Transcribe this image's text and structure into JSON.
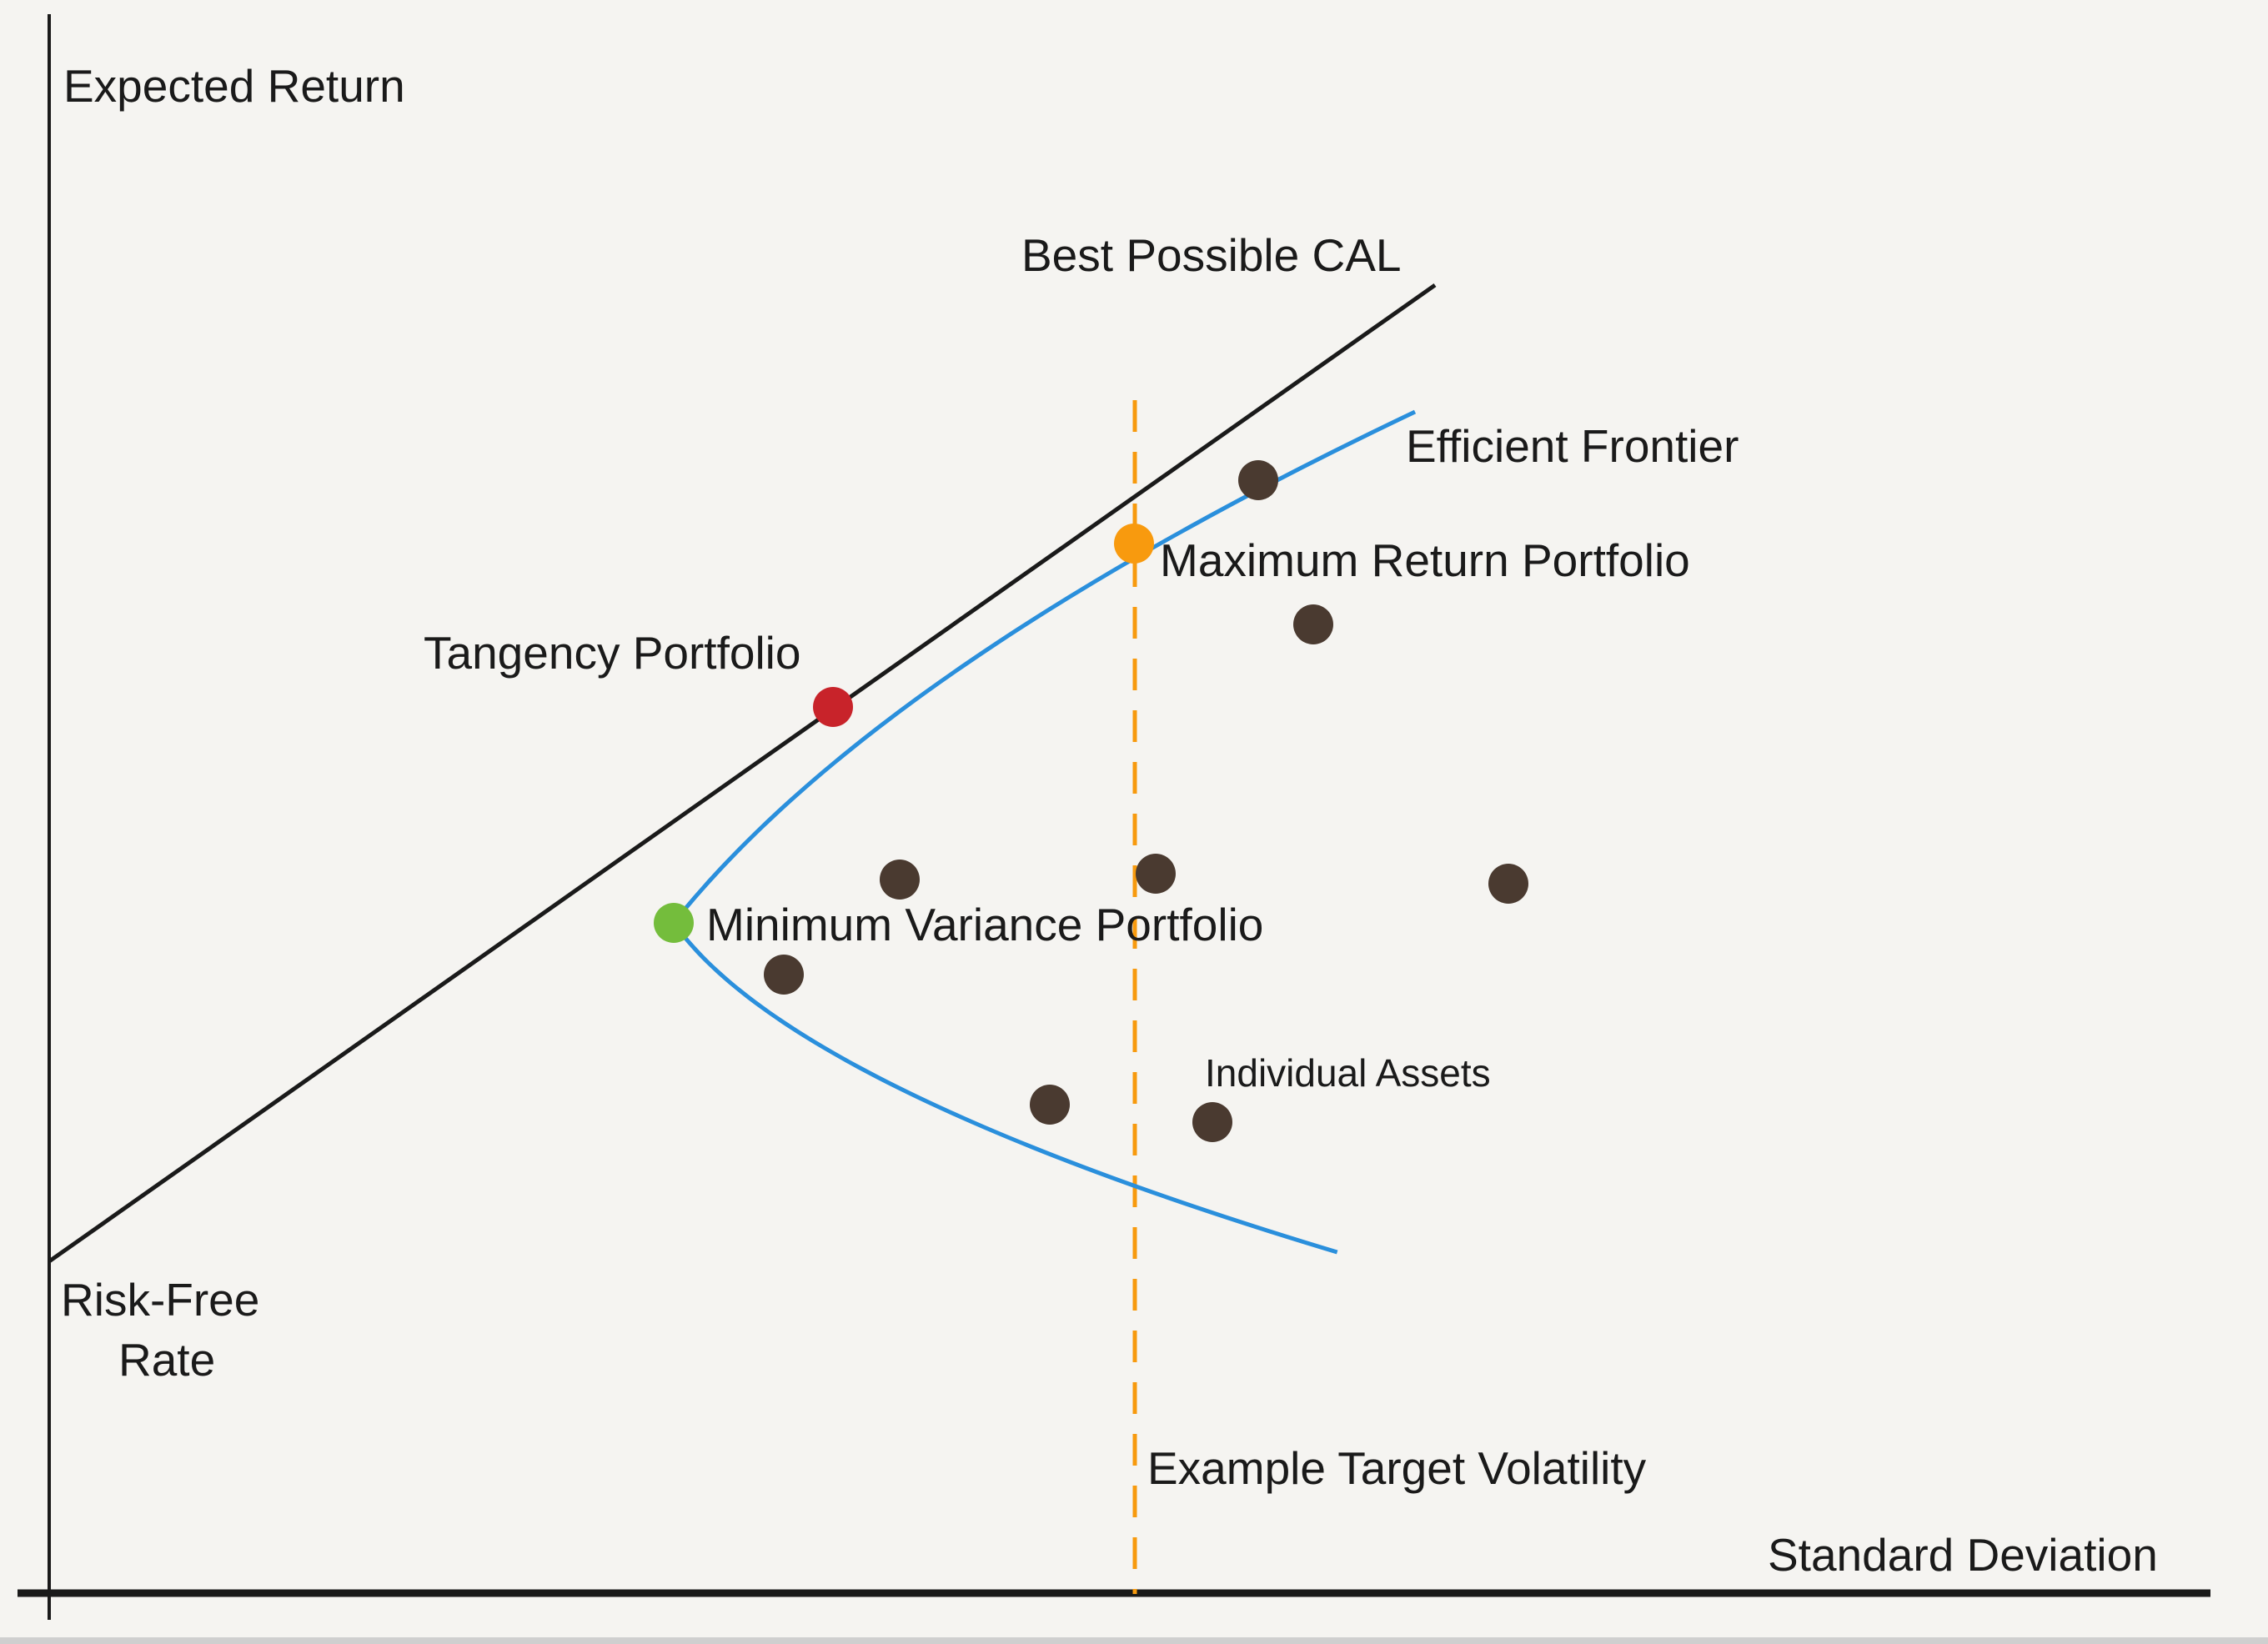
{
  "diagram": {
    "axes": {
      "y_label": "Expected Return",
      "x_label": "Standard Deviation"
    },
    "labels": {
      "cal": "Best Possible CAL",
      "frontier": "Efficient Frontier",
      "max_return": "Maximum Return Portfolio",
      "tangency": "Tangency Portfolio",
      "min_variance": "Minimum Variance Portfolio",
      "assets": "Individual Assets",
      "risk_free_line1": "Risk-Free",
      "risk_free_line2": "Rate",
      "target_vol": "Example Target Volatility"
    },
    "colors": {
      "background": "#f5f4f1",
      "axis": "#1a1a1a",
      "cal": "#1a1a1a",
      "frontier": "#2a8fdc",
      "target_line": "#f79a0e",
      "tangency": "#c8232a",
      "max_return": "#f89a0e",
      "min_variance": "#74bd3c",
      "assets": "#4a3a30"
    }
  }
}
